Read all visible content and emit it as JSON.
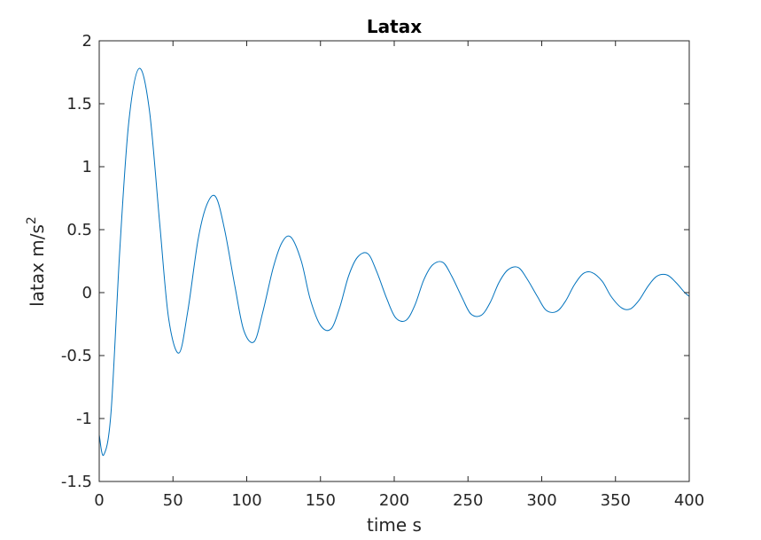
{
  "chart_data": {
    "type": "line",
    "title": "Latax",
    "xlabel": "time s",
    "ylabel_main": "latax m/s",
    "ylabel_superscript": "2",
    "xlim": [
      0,
      400
    ],
    "ylim": [
      -1.5,
      2
    ],
    "xticks": [
      0,
      50,
      100,
      150,
      200,
      250,
      300,
      350,
      400
    ],
    "xtick_labels": [
      "0",
      "50",
      "100",
      "150",
      "200",
      "250",
      "300",
      "350",
      "400"
    ],
    "yticks": [
      -1.5,
      -1,
      -0.5,
      0,
      0.5,
      1,
      1.5,
      2
    ],
    "ytick_labels": [
      "-1.5",
      "-1",
      "-0.5",
      "0",
      "0.5",
      "1",
      "1.5",
      "2"
    ],
    "grid": false,
    "line_color": "#0072bd",
    "series": [
      {
        "x": [
          0,
          3,
          8,
          14,
          20,
          27,
          34,
          41,
          47,
          54,
          60,
          67,
          73,
          79,
          85,
          92,
          98,
          105,
          111,
          118,
          124,
          130,
          137,
          143,
          150,
          157,
          163,
          169,
          175,
          182,
          188,
          195,
          201,
          208,
          214,
          220,
          226,
          233,
          239,
          246,
          252,
          259,
          265,
          271,
          277,
          284,
          290,
          297,
          303,
          310,
          316,
          322,
          328,
          334,
          341,
          347,
          354,
          360,
          366,
          372,
          378,
          385,
          391,
          397,
          400
        ],
        "y": [
          -1.13,
          -1.29,
          -0.95,
          0.35,
          1.35,
          1.78,
          1.45,
          0.55,
          -0.2,
          -0.48,
          -0.15,
          0.42,
          0.7,
          0.76,
          0.5,
          0.05,
          -0.3,
          -0.39,
          -0.15,
          0.2,
          0.4,
          0.44,
          0.25,
          -0.05,
          -0.26,
          -0.29,
          -0.12,
          0.13,
          0.28,
          0.31,
          0.17,
          -0.05,
          -0.2,
          -0.22,
          -0.1,
          0.1,
          0.22,
          0.24,
          0.13,
          -0.04,
          -0.17,
          -0.18,
          -0.08,
          0.08,
          0.18,
          0.2,
          0.11,
          -0.03,
          -0.14,
          -0.15,
          -0.07,
          0.06,
          0.15,
          0.16,
          0.09,
          -0.03,
          -0.12,
          -0.13,
          -0.06,
          0.05,
          0.13,
          0.14,
          0.08,
          0.0,
          -0.03
        ]
      }
    ]
  }
}
